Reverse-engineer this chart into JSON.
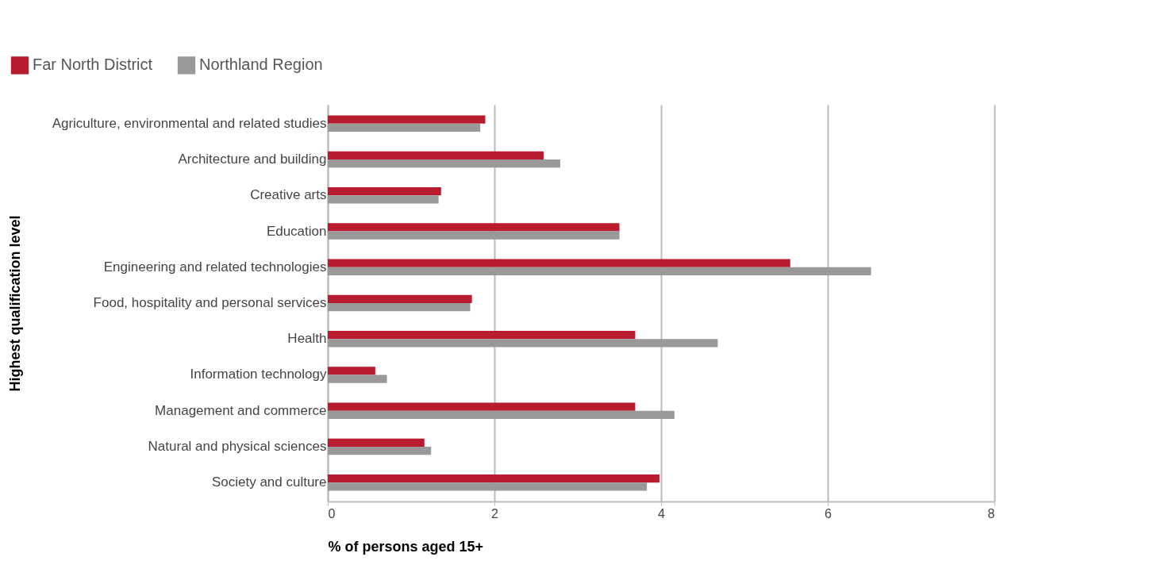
{
  "chart_data": {
    "type": "bar",
    "orientation": "horizontal",
    "xlabel": "% of persons aged 15+",
    "ylabel": "Highest qualification level",
    "categories": [
      "Agriculture, environmental and related studies",
      "Architecture and building",
      "Creative arts",
      "Education",
      "Engineering and related technologies",
      "Food, hospitality and personal services",
      "Health",
      "Information technology",
      "Management and commerce",
      "Natural and physical sciences",
      "Society and culture"
    ],
    "series": [
      {
        "name": "Far North District",
        "color": "#b81c2e",
        "values": [
          1.89,
          2.59,
          1.36,
          3.5,
          5.55,
          1.73,
          3.69,
          0.57,
          3.69,
          1.16,
          3.98
        ]
      },
      {
        "name": "Northland Region",
        "color": "#999999",
        "values": [
          1.83,
          2.79,
          1.33,
          3.5,
          6.52,
          1.71,
          4.68,
          0.71,
          4.16,
          1.24,
          3.83
        ]
      }
    ],
    "xlim": [
      0,
      8
    ],
    "xticks": [
      0,
      2,
      4,
      6,
      8
    ],
    "grid": "x",
    "legend": "top left"
  }
}
